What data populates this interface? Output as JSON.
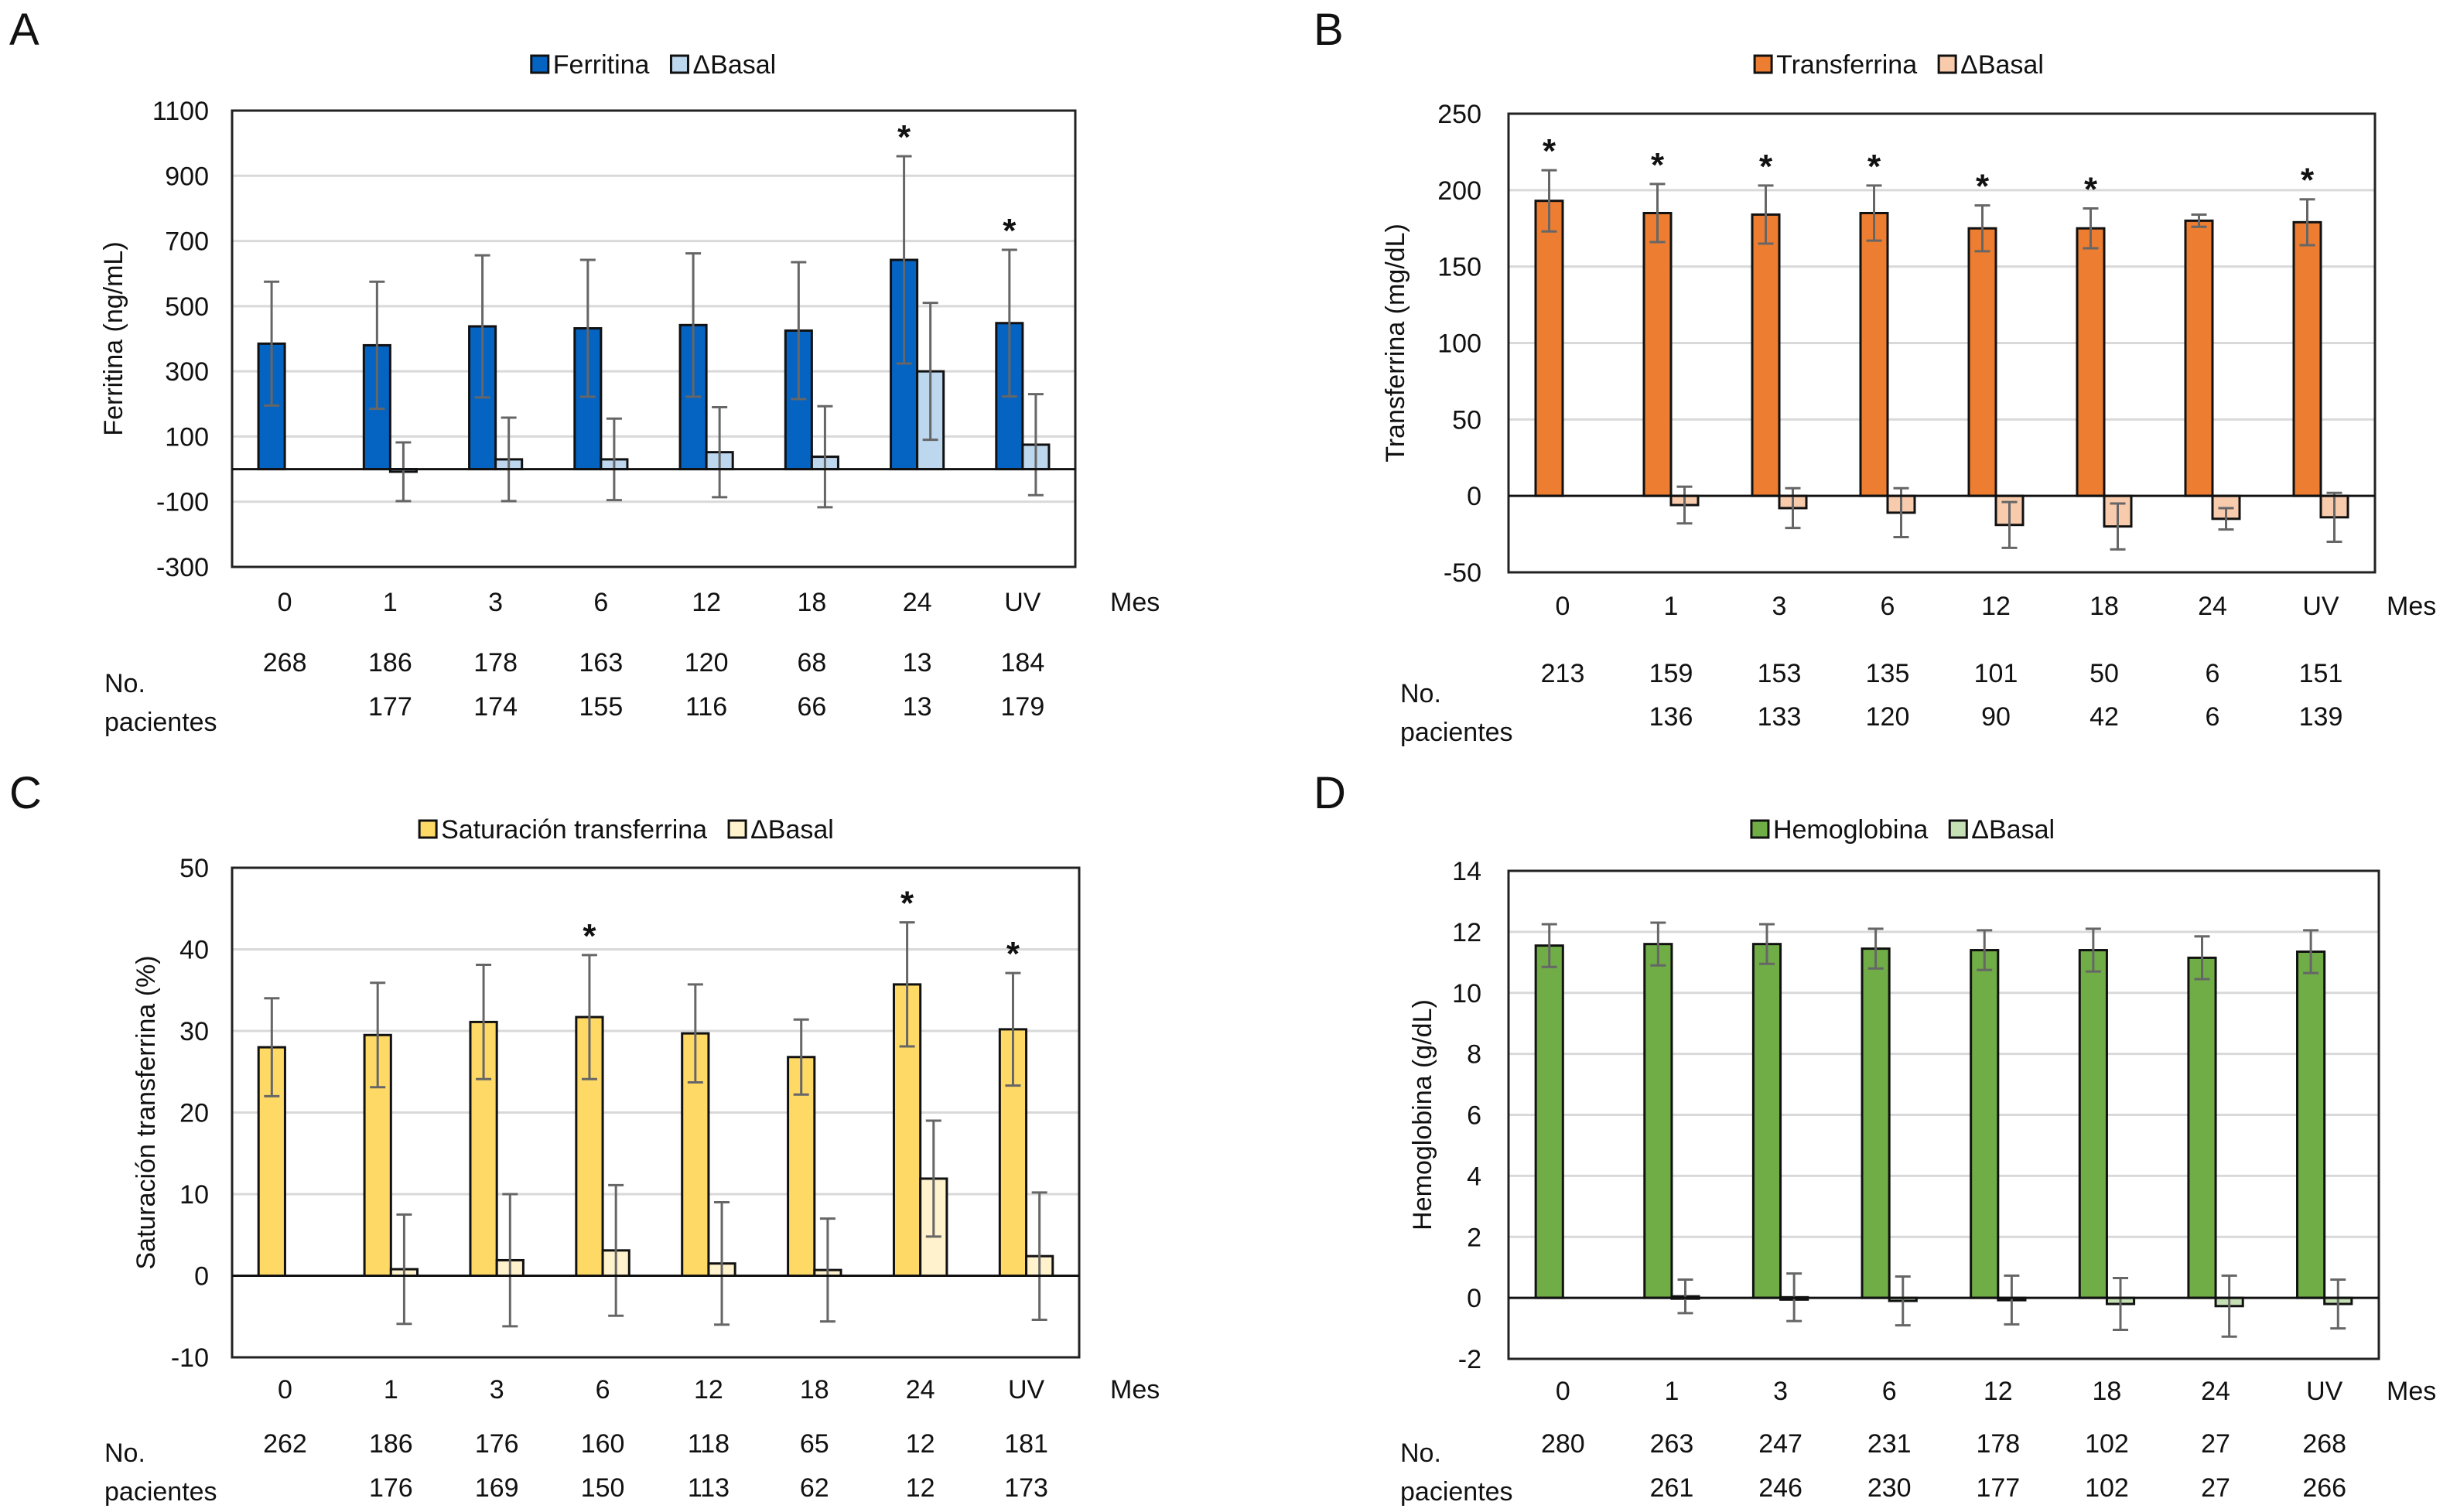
{
  "chart_data": [
    {
      "panel": "A",
      "type": "bar",
      "title": "",
      "legend": [
        "Ferritina",
        "ΔBasal"
      ],
      "legend_placement": "top-center",
      "ylabel": "Ferritina (ng/mL)",
      "xlabel": "Mes",
      "ylim": [
        -300,
        1100
      ],
      "yticks": [
        -300,
        -100,
        100,
        300,
        500,
        700,
        900,
        1100
      ],
      "grid": true,
      "categories": [
        "0",
        "1",
        "3",
        "6",
        "12",
        "18",
        "24",
        "UV"
      ],
      "colors": {
        "main": "#0563C1",
        "delta": "#BDD7EE"
      },
      "series": [
        {
          "name": "Ferritina",
          "values": [
            385,
            380,
            438,
            432,
            442,
            425,
            642,
            448
          ],
          "errors": [
            190,
            195,
            218,
            210,
            220,
            210,
            318,
            225
          ]
        },
        {
          "name": "ΔBasal",
          "values": [
            null,
            -8,
            30,
            30,
            52,
            38,
            300,
            75
          ],
          "errors": [
            null,
            90,
            128,
            125,
            138,
            155,
            210,
            155
          ]
        }
      ],
      "significance": [
        "",
        "",
        "",
        "",
        "",
        "",
        "*",
        "*"
      ],
      "n_label": [
        "No.",
        "pacientes"
      ],
      "n_main": [
        "268",
        "186",
        "178",
        "163",
        "120",
        "68",
        "13",
        "184"
      ],
      "n_delta": [
        "",
        "177",
        "174",
        "155",
        "116",
        "66",
        "13",
        "179"
      ]
    },
    {
      "panel": "B",
      "type": "bar",
      "title": "",
      "legend": [
        "Transferrina",
        "ΔBasal"
      ],
      "legend_placement": "top-center",
      "ylabel": "Transferrina (mg/dL)",
      "xlabel": "Mes",
      "ylim": [
        -50,
        250
      ],
      "yticks": [
        -50,
        0,
        50,
        100,
        150,
        200,
        250
      ],
      "grid": true,
      "categories": [
        "0",
        "1",
        "3",
        "6",
        "12",
        "18",
        "24",
        "UV"
      ],
      "colors": {
        "main": "#ED7D31",
        "delta": "#F8CBAD"
      },
      "series": [
        {
          "name": "Transferrina",
          "values": [
            193,
            185,
            184,
            185,
            175,
            175,
            180,
            179
          ],
          "errors": [
            20,
            19,
            19,
            18,
            15,
            13,
            4,
            15
          ]
        },
        {
          "name": "ΔBasal",
          "values": [
            null,
            -6,
            -8,
            -11,
            -19,
            -20,
            -15,
            -14
          ],
          "errors": [
            null,
            12,
            13,
            16,
            15,
            15,
            7,
            16
          ]
        }
      ],
      "significance": [
        "*",
        "*",
        "*",
        "*",
        "*",
        "*",
        "",
        "*"
      ],
      "n_label": [
        "No.",
        "pacientes"
      ],
      "n_main": [
        "213",
        "159",
        "153",
        "135",
        "101",
        "50",
        "6",
        "151"
      ],
      "n_delta": [
        "",
        "136",
        "133",
        "120",
        "90",
        "42",
        "6",
        "139"
      ]
    },
    {
      "panel": "C",
      "type": "bar",
      "title": "",
      "legend": [
        "Saturación transferrina",
        "ΔBasal"
      ],
      "legend_placement": "top-center",
      "ylabel": "Saturación transferrina (%)",
      "xlabel": "Mes",
      "ylim": [
        -10,
        50
      ],
      "yticks": [
        -10,
        0,
        10,
        20,
        30,
        40,
        50
      ],
      "grid": true,
      "categories": [
        "0",
        "1",
        "3",
        "6",
        "12",
        "18",
        "24",
        "UV"
      ],
      "colors": {
        "main": "#FFD966",
        "delta": "#FFF2CC"
      },
      "series": [
        {
          "name": "Saturación transferrina",
          "values": [
            28.0,
            29.5,
            31.1,
            31.7,
            29.7,
            26.8,
            35.7,
            30.2
          ],
          "errors": [
            6.0,
            6.4,
            7.0,
            7.6,
            6.0,
            4.6,
            7.6,
            6.9
          ]
        },
        {
          "name": "ΔBasal",
          "values": [
            null,
            0.8,
            1.9,
            3.1,
            1.5,
            0.7,
            11.9,
            2.4
          ],
          "errors": [
            null,
            6.7,
            8.1,
            8.0,
            7.5,
            6.3,
            7.1,
            7.8
          ]
        }
      ],
      "significance": [
        "",
        "",
        "",
        "*",
        "",
        "",
        "*",
        "*"
      ],
      "n_label": [
        "No.",
        "pacientes"
      ],
      "n_main": [
        "262",
        "186",
        "176",
        "160",
        "118",
        "65",
        "12",
        "181"
      ],
      "n_delta": [
        "",
        "176",
        "169",
        "150",
        "113",
        "62",
        "12",
        "173"
      ]
    },
    {
      "panel": "D",
      "type": "bar",
      "title": "",
      "legend": [
        "Hemoglobina",
        "ΔBasal"
      ],
      "legend_placement": "top-center",
      "ylabel": "Hemoglobina (g/dL)",
      "xlabel": "Mes",
      "ylim": [
        -2,
        14
      ],
      "yticks": [
        -2,
        0,
        2,
        4,
        6,
        8,
        10,
        12,
        14
      ],
      "grid": true,
      "categories": [
        "0",
        "1",
        "3",
        "6",
        "12",
        "18",
        "24",
        "UV"
      ],
      "colors": {
        "main": "#70AD47",
        "delta": "#C5E0B4"
      },
      "series": [
        {
          "name": "Hemoglobina",
          "values": [
            11.55,
            11.6,
            11.6,
            11.45,
            11.4,
            11.4,
            11.15,
            11.35
          ],
          "errors": [
            0.7,
            0.7,
            0.65,
            0.65,
            0.65,
            0.7,
            0.7,
            0.7
          ]
        },
        {
          "name": "ΔBasal",
          "values": [
            null,
            0.05,
            0.02,
            -0.1,
            -0.07,
            -0.2,
            -0.27,
            -0.2
          ],
          "errors": [
            null,
            0.55,
            0.78,
            0.8,
            0.8,
            0.85,
            1.0,
            0.8
          ]
        }
      ],
      "significance": [
        "",
        "",
        "",
        "",
        "",
        "",
        "",
        ""
      ],
      "n_label": [
        "No.",
        "pacientes"
      ],
      "n_main": [
        "280",
        "263",
        "247",
        "231",
        "178",
        "102",
        "27",
        "268"
      ],
      "n_delta": [
        "",
        "261",
        "246",
        "230",
        "177",
        "102",
        "27",
        "266"
      ]
    }
  ]
}
